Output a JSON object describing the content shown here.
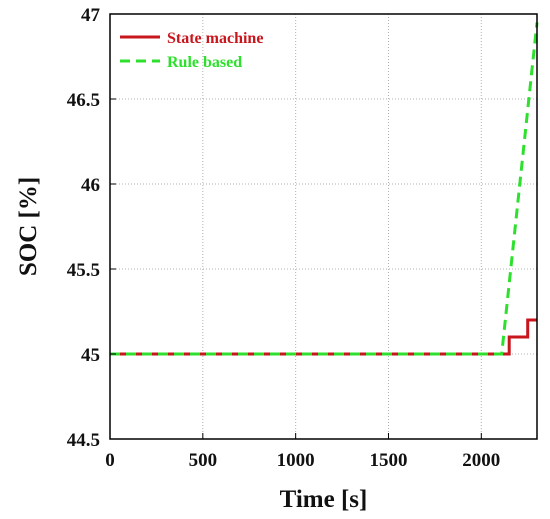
{
  "chart_data": {
    "type": "line",
    "title": "",
    "xlabel": "Time [s]",
    "ylabel": "SOC [%]",
    "xlim": [
      0,
      2300
    ],
    "ylim": [
      44.5,
      47
    ],
    "xticks": [
      0,
      500,
      1000,
      1500,
      2000
    ],
    "yticks": [
      44.5,
      45,
      45.5,
      46,
      46.5,
      47
    ],
    "xtick_labels": [
      "0",
      "500",
      "1000",
      "1500",
      "2000"
    ],
    "ytick_labels": [
      "44.5",
      "45",
      "45.5",
      "46",
      "46.5",
      "47"
    ],
    "grid": true,
    "legend": "top-left",
    "series": [
      {
        "name": "State machine",
        "color": "#c8161d",
        "style": "solid",
        "x": [
          0,
          2150,
          2150,
          2250,
          2250,
          2300
        ],
        "y": [
          45,
          45,
          45.1,
          45.1,
          45.2,
          45.2
        ]
      },
      {
        "name": "Rule based",
        "color": "#2ee02e",
        "style": "dashed",
        "x": [
          0,
          2110,
          2300
        ],
        "y": [
          45,
          45,
          46.95
        ]
      }
    ]
  }
}
